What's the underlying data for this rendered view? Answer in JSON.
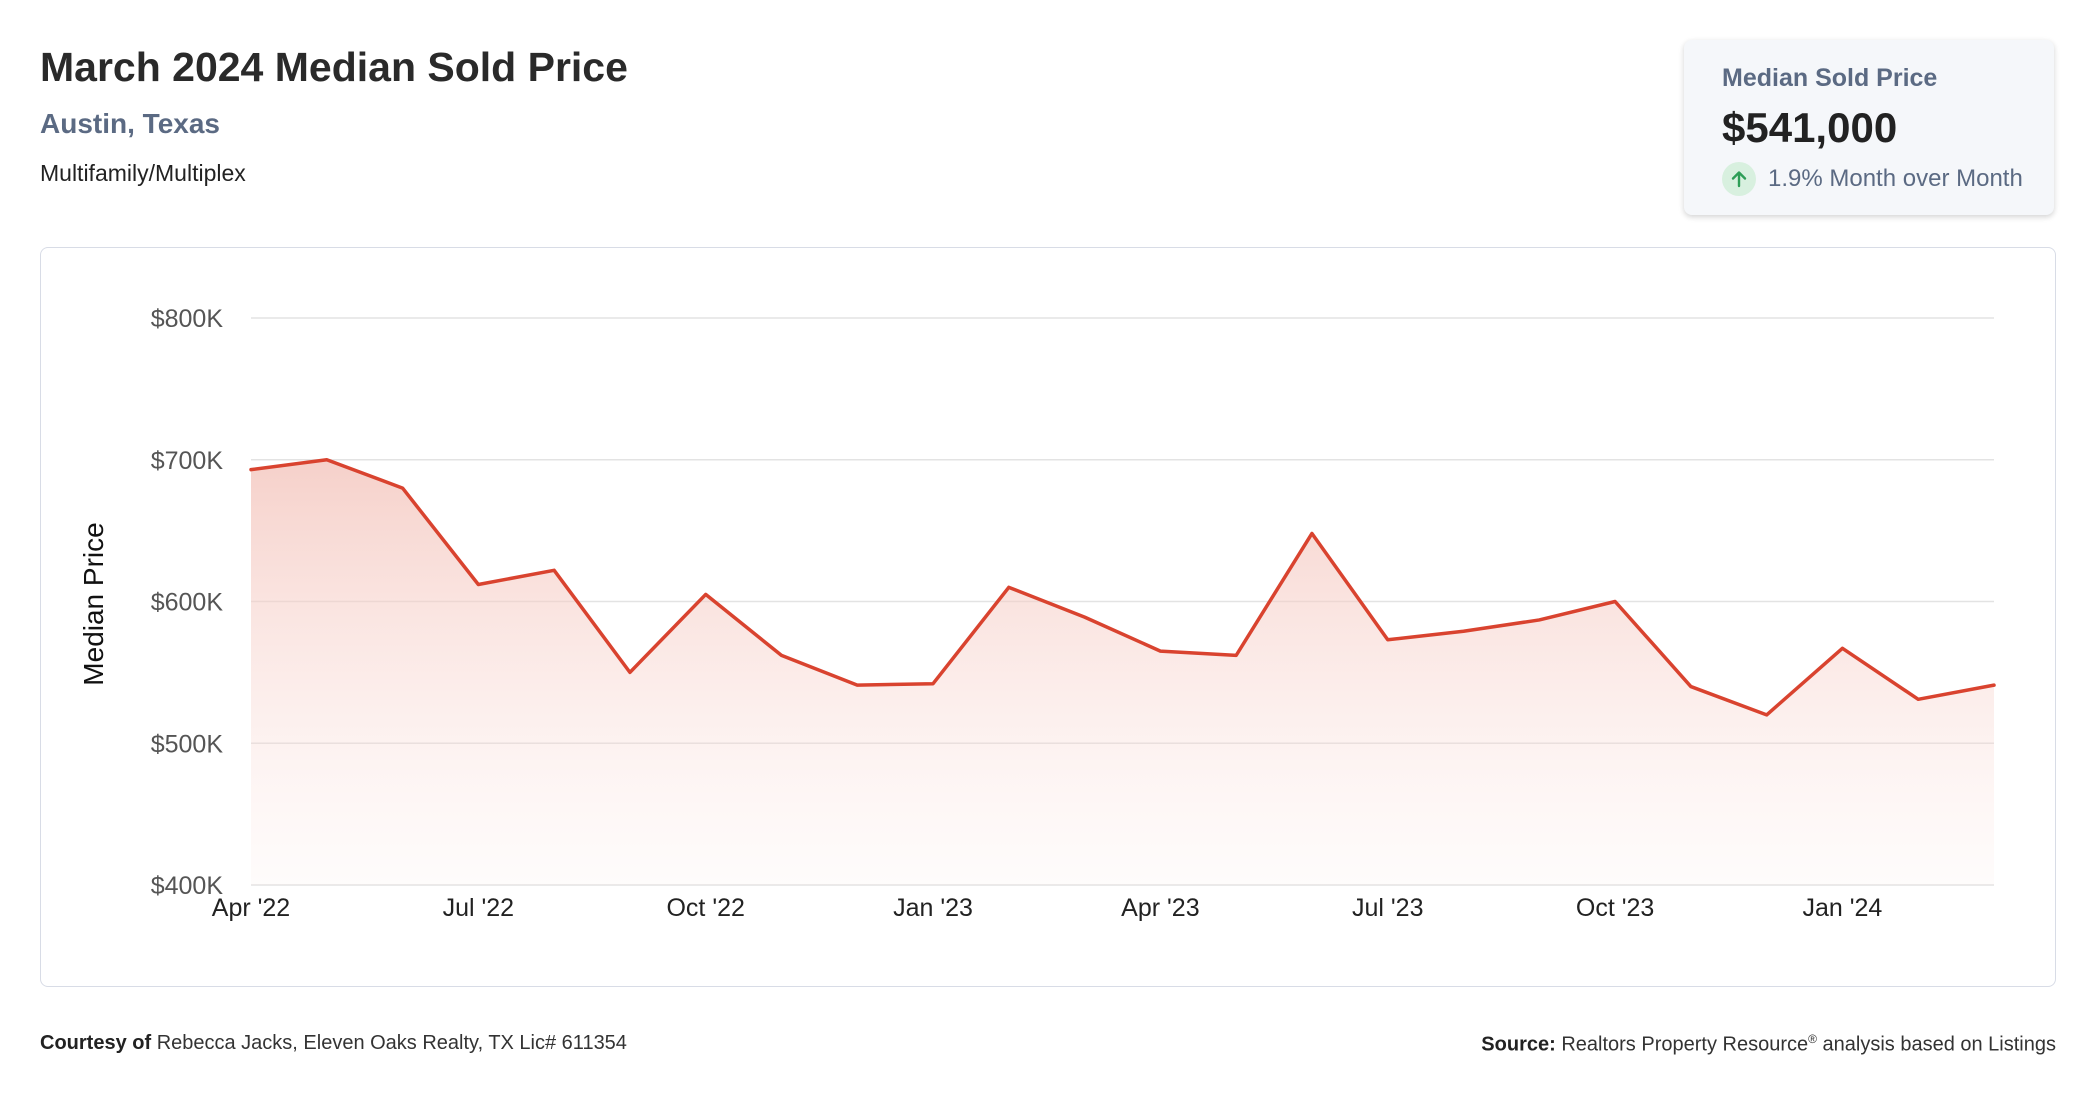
{
  "header": {
    "title": "March 2024 Median Sold Price",
    "location": "Austin, Texas",
    "property_type": "Multifamily/Multiplex"
  },
  "kpi": {
    "label": "Median Sold Price",
    "value": "$541,000",
    "change": "1.9% Month over Month",
    "change_direction": "up",
    "icon": "arrow-up-icon"
  },
  "chart_data": {
    "type": "area",
    "title": "",
    "xlabel": "",
    "ylabel": "Median Price",
    "ylim": [
      400000,
      800000
    ],
    "yticks": [
      400000,
      500000,
      600000,
      700000,
      800000
    ],
    "ytick_labels": [
      "$400K",
      "$500K",
      "$600K",
      "$700K",
      "$800K"
    ],
    "xtick_labels": [
      "Apr '22",
      "Jul '22",
      "Oct '22",
      "Jan '23",
      "Apr '23",
      "Jul '23",
      "Oct '23",
      "Jan '24"
    ],
    "xtick_indices": [
      0,
      3,
      6,
      9,
      12,
      15,
      18,
      21
    ],
    "categories": [
      "Apr '22",
      "May '22",
      "Jun '22",
      "Jul '22",
      "Aug '22",
      "Sep '22",
      "Oct '22",
      "Nov '22",
      "Dec '22",
      "Jan '23",
      "Feb '23",
      "Mar '23",
      "Apr '23",
      "May '23",
      "Jun '23",
      "Jul '23",
      "Aug '23",
      "Sep '23",
      "Oct '23",
      "Nov '23",
      "Dec '23",
      "Jan '24",
      "Feb '24",
      "Mar '24"
    ],
    "values": [
      693000,
      700000,
      680000,
      612000,
      622000,
      550000,
      605000,
      562000,
      541000,
      542000,
      610000,
      589000,
      565000,
      562000,
      648000,
      573000,
      579000,
      587000,
      600000,
      540000,
      520000,
      567000,
      531000,
      541000
    ],
    "grid": true,
    "line_color": "#d9432f",
    "fill_color": "#f6d3cd"
  },
  "footer": {
    "courtesy_label": "Courtesy of",
    "courtesy_text": "Rebecca Jacks, Eleven Oaks Realty, TX Lic# 611354",
    "source_label": "Source:",
    "source_text": "Realtors Property Resource",
    "source_sup": "®",
    "source_suffix": "analysis based on Listings"
  },
  "colors": {
    "accent": "#d9432f",
    "subtitle": "#5b6a83",
    "up_green": "#2e9e57"
  }
}
